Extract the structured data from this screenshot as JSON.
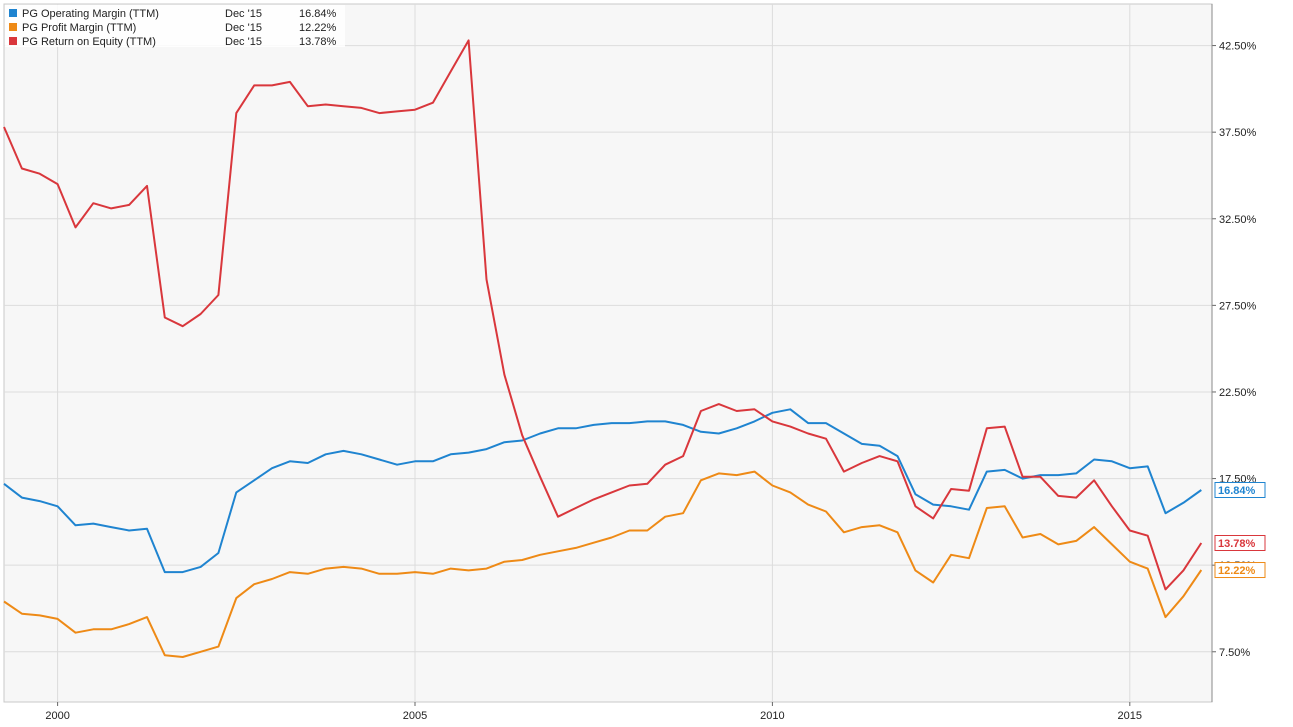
{
  "chart_data": {
    "type": "line",
    "title": "",
    "xlabel": "",
    "ylabel": "",
    "x_axis": {
      "type": "time",
      "range": [
        1999.25,
        2016.15
      ],
      "ticks": [
        {
          "value": 2000,
          "label": "2000"
        },
        {
          "value": 2005,
          "label": "2005"
        },
        {
          "value": 2010,
          "label": "2010"
        },
        {
          "value": 2015,
          "label": "2015"
        }
      ]
    },
    "y_axis": {
      "range": [
        4.6,
        44.9
      ],
      "position": "right",
      "ticks": [
        {
          "value": 7.5,
          "label": "7.50%"
        },
        {
          "value": 12.5,
          "label": "12.50%"
        },
        {
          "value": 17.5,
          "label": "17.50%"
        },
        {
          "value": 22.5,
          "label": "22.50%"
        },
        {
          "value": 27.5,
          "label": "27.50%"
        },
        {
          "value": 32.5,
          "label": "32.50%"
        },
        {
          "value": 37.5,
          "label": "37.50%"
        },
        {
          "value": 42.5,
          "label": "42.50%"
        }
      ]
    },
    "grid": true,
    "legend": {
      "position": "top-left",
      "date_label": "Dec '15"
    },
    "series": [
      {
        "name": "PG Operating Margin (TTM)",
        "last_value_label": "16.84%",
        "color": "#1f84d0",
        "points": [
          [
            1999.25,
            17.2
          ],
          [
            1999.5,
            16.4
          ],
          [
            1999.75,
            16.2
          ],
          [
            2000.0,
            15.9
          ],
          [
            2000.25,
            14.8
          ],
          [
            2000.5,
            14.9
          ],
          [
            2000.75,
            14.7
          ],
          [
            2001.0,
            14.5
          ],
          [
            2001.25,
            14.6
          ],
          [
            2001.5,
            12.1
          ],
          [
            2001.75,
            12.1
          ],
          [
            2002.0,
            12.4
          ],
          [
            2002.25,
            13.2
          ],
          [
            2002.5,
            16.7
          ],
          [
            2002.75,
            17.4
          ],
          [
            2003.0,
            18.1
          ],
          [
            2003.25,
            18.5
          ],
          [
            2003.5,
            18.4
          ],
          [
            2003.75,
            18.9
          ],
          [
            2004.0,
            19.1
          ],
          [
            2004.25,
            18.9
          ],
          [
            2004.5,
            18.6
          ],
          [
            2004.75,
            18.3
          ],
          [
            2005.0,
            18.5
          ],
          [
            2005.25,
            18.5
          ],
          [
            2005.5,
            18.9
          ],
          [
            2005.75,
            19.0
          ],
          [
            2006.0,
            19.2
          ],
          [
            2006.25,
            19.6
          ],
          [
            2006.5,
            19.7
          ],
          [
            2006.75,
            20.1
          ],
          [
            2007.0,
            20.4
          ],
          [
            2007.25,
            20.4
          ],
          [
            2007.5,
            20.6
          ],
          [
            2007.75,
            20.7
          ],
          [
            2008.0,
            20.7
          ],
          [
            2008.25,
            20.8
          ],
          [
            2008.5,
            20.8
          ],
          [
            2008.75,
            20.6
          ],
          [
            2009.0,
            20.2
          ],
          [
            2009.25,
            20.1
          ],
          [
            2009.5,
            20.4
          ],
          [
            2009.75,
            20.8
          ],
          [
            2010.0,
            21.3
          ],
          [
            2010.25,
            21.5
          ],
          [
            2010.5,
            20.7
          ],
          [
            2010.75,
            20.7
          ],
          [
            2011.0,
            20.1
          ],
          [
            2011.25,
            19.5
          ],
          [
            2011.5,
            19.4
          ],
          [
            2011.75,
            18.8
          ],
          [
            2012.0,
            16.6
          ],
          [
            2012.25,
            16.0
          ],
          [
            2012.5,
            15.9
          ],
          [
            2012.75,
            15.7
          ],
          [
            2013.0,
            17.9
          ],
          [
            2013.25,
            18.0
          ],
          [
            2013.5,
            17.5
          ],
          [
            2013.75,
            17.7
          ],
          [
            2014.0,
            17.7
          ],
          [
            2014.25,
            17.8
          ],
          [
            2014.5,
            18.6
          ],
          [
            2014.75,
            18.5
          ],
          [
            2015.0,
            18.1
          ],
          [
            2015.25,
            18.2
          ],
          [
            2015.5,
            15.5
          ],
          [
            2015.75,
            16.1
          ],
          [
            2016.0,
            16.84
          ]
        ]
      },
      {
        "name": "PG Profit Margin (TTM)",
        "last_value_label": "12.22%",
        "color": "#ee8a16",
        "points": [
          [
            1999.25,
            10.4
          ],
          [
            1999.5,
            9.7
          ],
          [
            1999.75,
            9.6
          ],
          [
            2000.0,
            9.4
          ],
          [
            2000.25,
            8.6
          ],
          [
            2000.5,
            8.8
          ],
          [
            2000.75,
            8.8
          ],
          [
            2001.0,
            9.1
          ],
          [
            2001.25,
            9.5
          ],
          [
            2001.5,
            7.3
          ],
          [
            2001.75,
            7.2
          ],
          [
            2002.0,
            7.5
          ],
          [
            2002.25,
            7.8
          ],
          [
            2002.5,
            10.6
          ],
          [
            2002.75,
            11.4
          ],
          [
            2003.0,
            11.7
          ],
          [
            2003.25,
            12.1
          ],
          [
            2003.5,
            12.0
          ],
          [
            2003.75,
            12.3
          ],
          [
            2004.0,
            12.4
          ],
          [
            2004.25,
            12.3
          ],
          [
            2004.5,
            12.0
          ],
          [
            2004.75,
            12.0
          ],
          [
            2005.0,
            12.1
          ],
          [
            2005.25,
            12.0
          ],
          [
            2005.5,
            12.3
          ],
          [
            2005.75,
            12.2
          ],
          [
            2006.0,
            12.3
          ],
          [
            2006.25,
            12.7
          ],
          [
            2006.5,
            12.8
          ],
          [
            2006.75,
            13.1
          ],
          [
            2007.0,
            13.3
          ],
          [
            2007.25,
            13.5
          ],
          [
            2007.5,
            13.8
          ],
          [
            2007.75,
            14.1
          ],
          [
            2008.0,
            14.5
          ],
          [
            2008.25,
            14.5
          ],
          [
            2008.5,
            15.3
          ],
          [
            2008.75,
            15.5
          ],
          [
            2009.0,
            17.4
          ],
          [
            2009.25,
            17.8
          ],
          [
            2009.5,
            17.7
          ],
          [
            2009.75,
            17.9
          ],
          [
            2010.0,
            17.1
          ],
          [
            2010.25,
            16.7
          ],
          [
            2010.5,
            16.0
          ],
          [
            2010.75,
            15.6
          ],
          [
            2011.0,
            14.4
          ],
          [
            2011.25,
            14.7
          ],
          [
            2011.5,
            14.8
          ],
          [
            2011.75,
            14.4
          ],
          [
            2012.0,
            12.2
          ],
          [
            2012.25,
            11.5
          ],
          [
            2012.5,
            13.1
          ],
          [
            2012.75,
            12.9
          ],
          [
            2013.0,
            15.8
          ],
          [
            2013.25,
            15.9
          ],
          [
            2013.5,
            14.1
          ],
          [
            2013.75,
            14.3
          ],
          [
            2014.0,
            13.7
          ],
          [
            2014.25,
            13.9
          ],
          [
            2014.5,
            14.7
          ],
          [
            2014.75,
            13.7
          ],
          [
            2015.0,
            12.7
          ],
          [
            2015.25,
            12.3
          ],
          [
            2015.5,
            9.5
          ],
          [
            2015.75,
            10.7
          ],
          [
            2016.0,
            12.22
          ]
        ]
      },
      {
        "name": "PG Return on Equity (TTM)",
        "last_value_label": "13.78%",
        "color": "#d9373c",
        "points": [
          [
            1999.25,
            37.8
          ],
          [
            1999.5,
            35.4
          ],
          [
            1999.75,
            35.1
          ],
          [
            2000.0,
            34.5
          ],
          [
            2000.25,
            32.0
          ],
          [
            2000.5,
            33.4
          ],
          [
            2000.75,
            33.1
          ],
          [
            2001.0,
            33.3
          ],
          [
            2001.25,
            34.4
          ],
          [
            2001.5,
            26.8
          ],
          [
            2001.75,
            26.3
          ],
          [
            2002.0,
            27.0
          ],
          [
            2002.25,
            28.1
          ],
          [
            2002.5,
            38.6
          ],
          [
            2002.75,
            40.2
          ],
          [
            2003.0,
            40.2
          ],
          [
            2003.25,
            40.4
          ],
          [
            2003.5,
            39.0
          ],
          [
            2003.75,
            39.1
          ],
          [
            2004.0,
            39.0
          ],
          [
            2004.25,
            38.9
          ],
          [
            2004.5,
            38.6
          ],
          [
            2004.75,
            38.7
          ],
          [
            2005.0,
            38.8
          ],
          [
            2005.25,
            39.2
          ],
          [
            2005.5,
            41.0
          ],
          [
            2005.75,
            42.8
          ],
          [
            2006.0,
            29.0
          ],
          [
            2006.25,
            23.5
          ],
          [
            2006.5,
            20.0
          ],
          [
            2006.75,
            17.6
          ],
          [
            2007.0,
            15.3
          ],
          [
            2007.25,
            15.8
          ],
          [
            2007.5,
            16.3
          ],
          [
            2007.75,
            16.7
          ],
          [
            2008.0,
            17.1
          ],
          [
            2008.25,
            17.2
          ],
          [
            2008.5,
            18.3
          ],
          [
            2008.75,
            18.8
          ],
          [
            2009.0,
            21.4
          ],
          [
            2009.25,
            21.8
          ],
          [
            2009.5,
            21.4
          ],
          [
            2009.75,
            21.5
          ],
          [
            2010.0,
            20.8
          ],
          [
            2010.25,
            20.5
          ],
          [
            2010.5,
            20.1
          ],
          [
            2010.75,
            19.8
          ],
          [
            2011.0,
            17.9
          ],
          [
            2011.25,
            18.4
          ],
          [
            2011.5,
            18.8
          ],
          [
            2011.75,
            18.5
          ],
          [
            2012.0,
            15.9
          ],
          [
            2012.25,
            15.2
          ],
          [
            2012.5,
            16.9
          ],
          [
            2012.75,
            16.8
          ],
          [
            2013.0,
            20.4
          ],
          [
            2013.25,
            20.5
          ],
          [
            2013.5,
            17.6
          ],
          [
            2013.75,
            17.6
          ],
          [
            2014.0,
            16.5
          ],
          [
            2014.25,
            16.4
          ],
          [
            2014.5,
            17.4
          ],
          [
            2014.75,
            15.9
          ],
          [
            2015.0,
            14.5
          ],
          [
            2015.25,
            14.2
          ],
          [
            2015.5,
            11.1
          ],
          [
            2015.75,
            12.2
          ],
          [
            2016.0,
            13.78
          ]
        ]
      }
    ]
  }
}
